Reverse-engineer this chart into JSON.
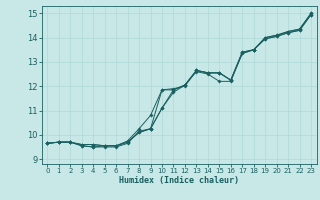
{
  "xlabel": "Humidex (Indice chaleur)",
  "xlim": [
    -0.5,
    23.5
  ],
  "ylim": [
    8.8,
    15.3
  ],
  "xticks": [
    0,
    1,
    2,
    3,
    4,
    5,
    6,
    7,
    8,
    9,
    10,
    11,
    12,
    13,
    14,
    15,
    16,
    17,
    18,
    19,
    20,
    21,
    22,
    23
  ],
  "yticks": [
    9,
    10,
    11,
    12,
    13,
    14,
    15
  ],
  "bg_color": "#c8e8e8",
  "line_color": "#1a6060",
  "grid_color": "#b0d8d8",
  "lines": [
    [
      9.65,
      9.7,
      9.7,
      9.55,
      9.5,
      9.5,
      9.5,
      9.65,
      10.15,
      10.25,
      11.85,
      11.9,
      12.0,
      12.65,
      12.55,
      12.55,
      12.25,
      13.4,
      13.5,
      14.0,
      14.1,
      14.25,
      14.35,
      15.0
    ],
    [
      9.65,
      9.7,
      9.7,
      9.55,
      9.5,
      9.55,
      9.55,
      9.75,
      10.25,
      10.8,
      11.85,
      11.85,
      12.05,
      12.6,
      12.5,
      12.2,
      12.2,
      13.35,
      13.5,
      13.95,
      14.05,
      14.2,
      14.3,
      14.95
    ],
    [
      9.65,
      9.7,
      9.7,
      9.6,
      9.6,
      9.55,
      9.55,
      9.7,
      10.1,
      10.25,
      11.1,
      11.85,
      12.05,
      12.65,
      12.55,
      12.55,
      12.25,
      13.4,
      13.5,
      14.0,
      14.1,
      14.25,
      14.35,
      15.0
    ],
    [
      9.65,
      9.7,
      9.7,
      9.6,
      9.6,
      9.55,
      9.55,
      9.7,
      10.1,
      10.25,
      11.1,
      11.75,
      12.05,
      12.65,
      12.55,
      12.55,
      12.25,
      13.35,
      13.5,
      13.95,
      14.05,
      14.2,
      14.3,
      14.95
    ]
  ]
}
